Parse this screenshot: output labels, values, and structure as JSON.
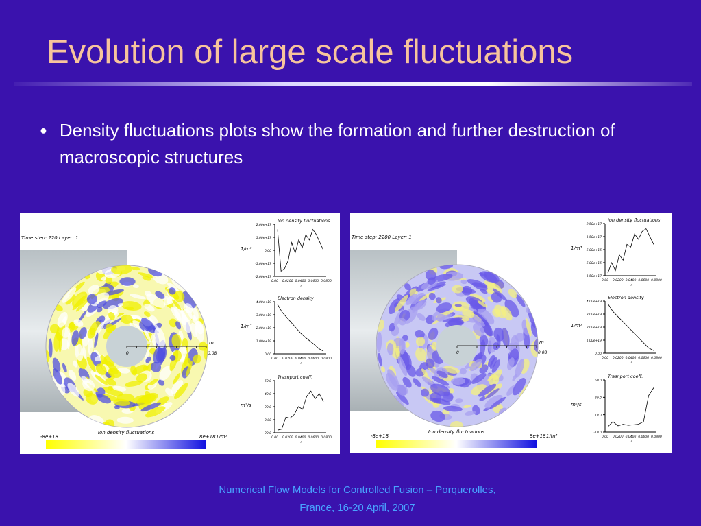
{
  "slide": {
    "title": "Evolution of large scale fluctuations",
    "bullet": "Density fluctuations plots show the formation and further destruction of macroscopic structures",
    "footer": [
      "Numerical Flow Models for Controlled Fusion – Porquerolles,",
      "France, 16-20 April,  2007"
    ]
  },
  "panels": [
    {
      "step_label": "Time step: 220  Layer: 1",
      "radius_unit": "m",
      "radius_zero": "0",
      "radius_max": "0.08",
      "colorbar_title": "Ion density fluctuations",
      "colorbar_min": "-8e+18",
      "colorbar_max": "8e+18",
      "colorbar_unit": "1/m³",
      "plots": [
        {
          "title": "Ion density fluctuations",
          "ylabel": "1/m³",
          "yticks": [
            "2.00e+17",
            "1.00e+17",
            "0.00",
            "-1.00e+17",
            "-2.00e+17"
          ],
          "xticks": [
            "0.00",
            "0.0200",
            "0.0400",
            "0.0600",
            "0.0800"
          ],
          "xlabel": "r"
        },
        {
          "title": "Electron density",
          "ylabel": "1/m³",
          "yticks": [
            "4.00e+19",
            "3.00e+19",
            "2.00e+19",
            "1.00e+19",
            "0.00"
          ],
          "xticks": [
            "0.00",
            "0.0200",
            "0.0400",
            "0.0600",
            "0.0800"
          ],
          "xlabel": "r"
        },
        {
          "title": "Trasnport coeff.",
          "ylabel": "m²/s",
          "yticks": [
            "60.0",
            "40.0",
            "20.0",
            "0.00",
            "-20.0"
          ],
          "xticks": [
            "0.00",
            "0.0200",
            "0.0400",
            "0.0600",
            "0.0800"
          ],
          "xlabel": "r"
        }
      ]
    },
    {
      "step_label": "Time step: 2200  Layer: 1",
      "radius_unit": "m",
      "radius_zero": "0",
      "radius_max": "0.08",
      "colorbar_title": "Ion density fluctuations",
      "colorbar_min": "-8e+18",
      "colorbar_max": "8e+18",
      "colorbar_unit": "1/m³",
      "plots": [
        {
          "title": "Ion density fluctuations",
          "ylabel": "1/m³",
          "yticks": [
            "2.50e+17",
            "1.50e+17",
            "5.00e+16",
            "-5.00e+16",
            "-1.50e+17"
          ],
          "xticks": [
            "0.00",
            "0.0200",
            "0.0400",
            "0.0600",
            "0.0800"
          ],
          "xlabel": "r"
        },
        {
          "title": "Electron density",
          "ylabel": "1/m³",
          "yticks": [
            "4.00e+19",
            "3.00e+19",
            "2.00e+19",
            "1.00e+19",
            "0.00"
          ],
          "xticks": [
            "0.00",
            "0.0200",
            "0.0400",
            "0.0600",
            "0.0800"
          ],
          "xlabel": "r"
        },
        {
          "title": "Trasnport coeff.",
          "ylabel": "m²/s",
          "yticks": [
            "50.0",
            "30.0",
            "10.0",
            "-10.0"
          ],
          "xticks": [
            "0.00",
            "0.0200",
            "0.0400",
            "0.0600",
            "0.0800"
          ],
          "xlabel": "r"
        }
      ]
    }
  ]
}
